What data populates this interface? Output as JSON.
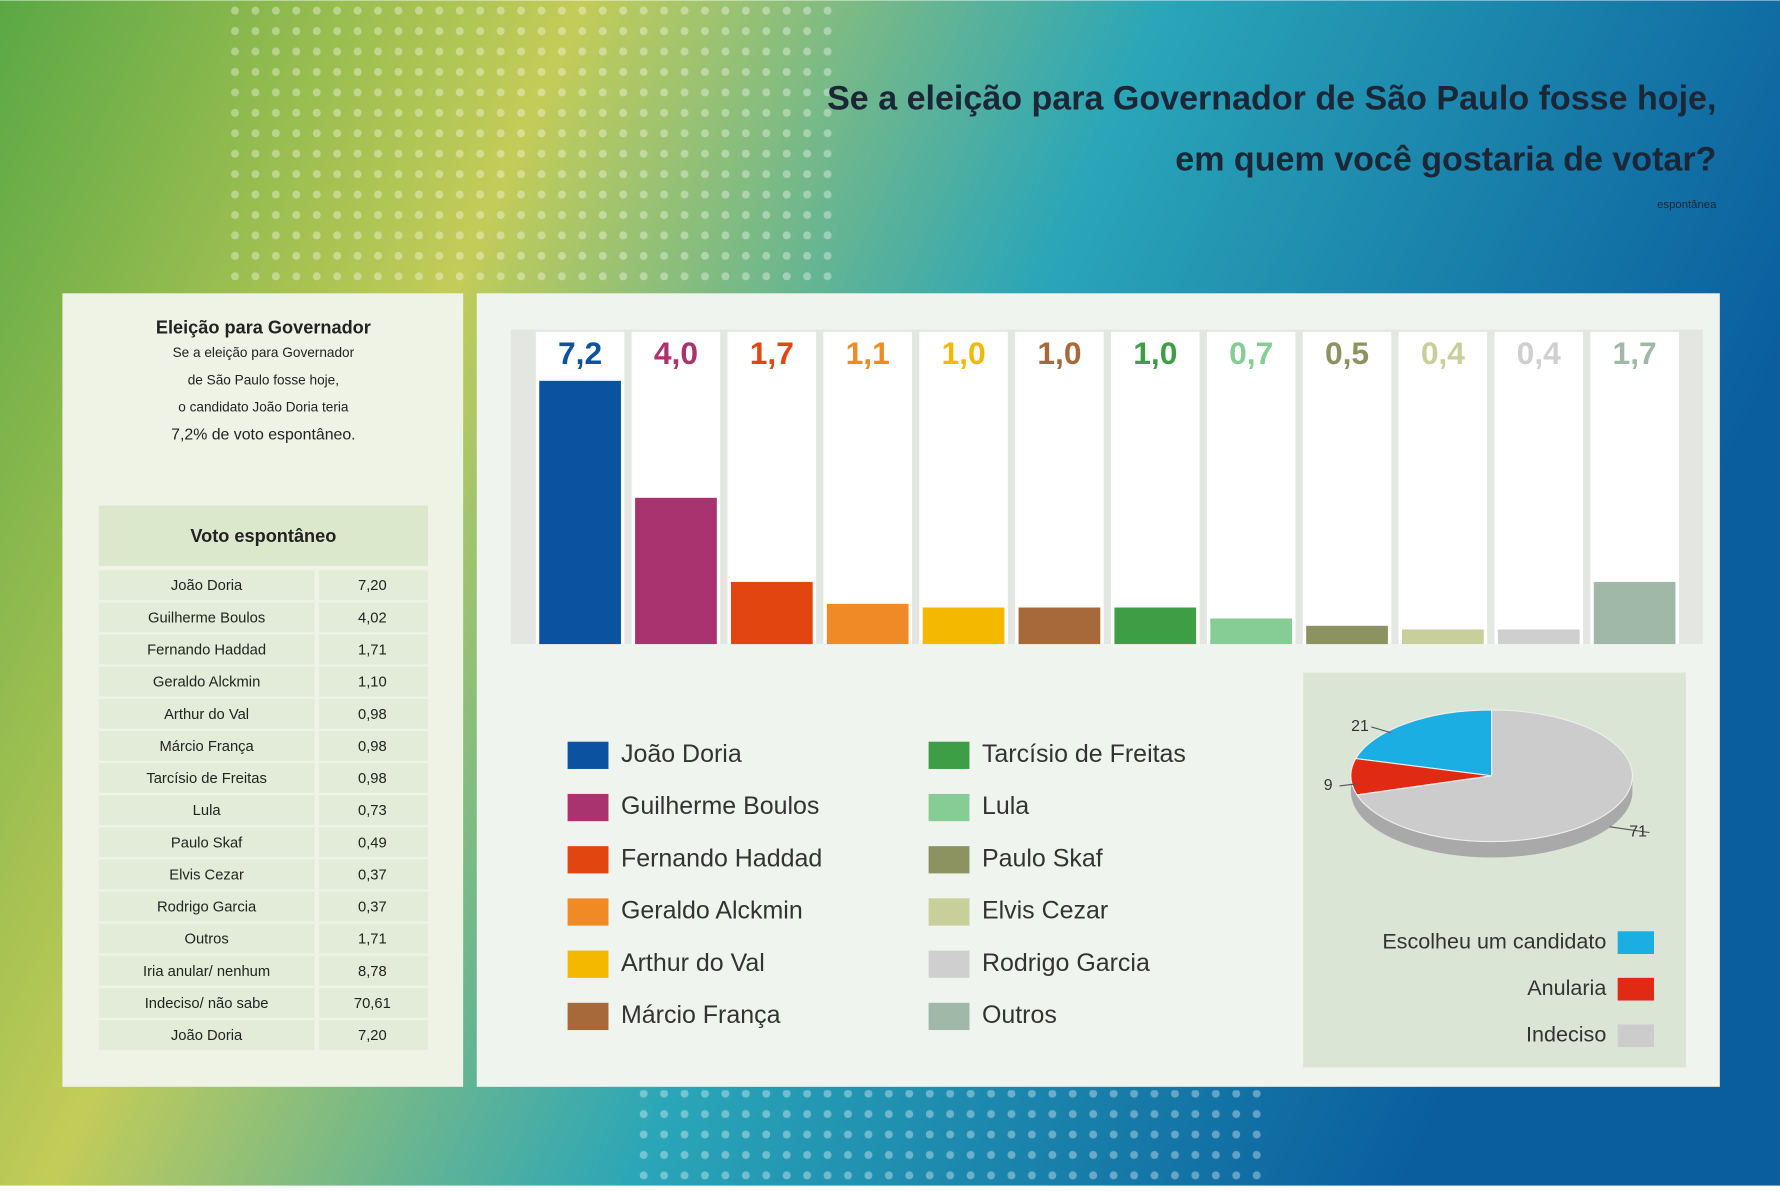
{
  "title": [
    "Se a eleição para Governador de São Paulo fosse hoje,",
    "em quem você gostaria de votar?"
  ],
  "subtitle": "espontânea",
  "sidebar": {
    "heading": "Eleição para Governador",
    "lines": [
      "Se a eleição para Governador",
      "de São Paulo fosse hoje,",
      "o candidato João Doria teria",
      "7,2% de voto espontâneo."
    ]
  },
  "table": {
    "header": "Voto espontâneo",
    "rows": [
      [
        "João Doria",
        "7,20"
      ],
      [
        "Guilherme Boulos",
        "4,02"
      ],
      [
        "Fernando Haddad",
        "1,71"
      ],
      [
        "Geraldo  Alckmin",
        "1,10"
      ],
      [
        "Arthur do Val",
        "0,98"
      ],
      [
        "Márcio França",
        "0,98"
      ],
      [
        "Tarcísio de Freitas",
        "0,98"
      ],
      [
        "Lula",
        "0,73"
      ],
      [
        "Paulo Skaf",
        "0,49"
      ],
      [
        "Elvis Cezar",
        "0,37"
      ],
      [
        "Rodrigo Garcia",
        "0,37"
      ],
      [
        "Outros",
        "1,71"
      ],
      [
        "Iria anular/ nenhum",
        "8,78"
      ],
      [
        "Indeciso/ não sabe",
        "70,61"
      ],
      [
        "João Doria",
        "7,20"
      ]
    ]
  },
  "chart_data": [
    {
      "type": "bar",
      "categories": [
        "João Doria",
        "Guilherme Boulos",
        "Fernando Haddad",
        "Geraldo  Alckmin",
        "Arthur do Val",
        "Márcio França",
        "Tarcísio de Freitas",
        "Lula",
        "Paulo Skaf",
        "Elvis Cezar",
        "Rodrigo Garcia",
        "Outros"
      ],
      "values": [
        7.2,
        4.0,
        1.7,
        1.1,
        1.0,
        1.0,
        1.0,
        0.7,
        0.5,
        0.4,
        0.4,
        1.7
      ],
      "value_labels": [
        "7,2",
        "4,0",
        "1,7",
        "1,1",
        "1,0",
        "1,0",
        "1,0",
        "0,7",
        "0,5",
        "0,4",
        "0,4",
        "1,7"
      ],
      "colors": [
        "#0b52a0",
        "#a8336e",
        "#e2450f",
        "#f08a24",
        "#f5b800",
        "#a8693a",
        "#3d9e45",
        "#86cc95",
        "#8c9360",
        "#c8cf9a",
        "#cfcfcf",
        "#9fb8a8"
      ],
      "ylim": [
        0,
        8.6
      ]
    },
    {
      "type": "pie",
      "categories": [
        "Escolheu um candidato",
        "Anularia",
        "Indeciso"
      ],
      "values": [
        21,
        9,
        71
      ],
      "colors": [
        "#1aaee2",
        "#e02a14",
        "#cccccc"
      ]
    }
  ]
}
